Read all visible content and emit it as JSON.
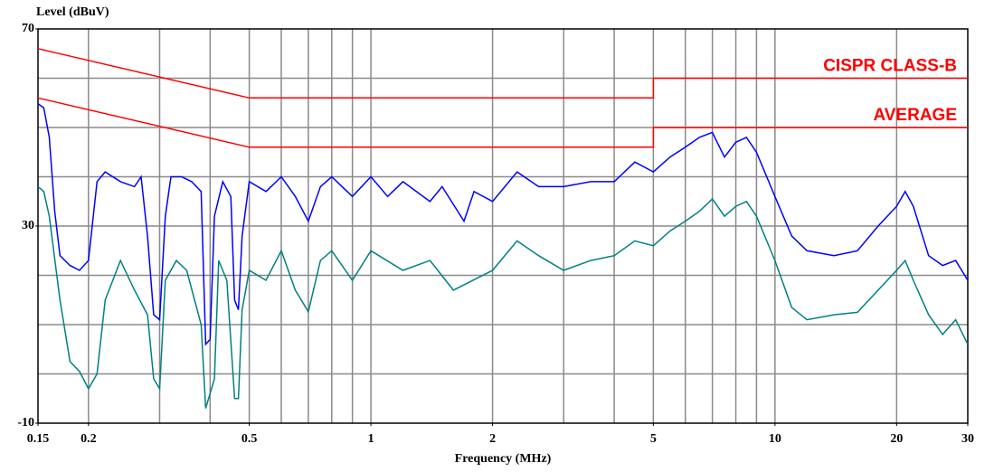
{
  "chart_data": {
    "type": "line",
    "y_label": "Level (dBuV)",
    "x_label": "Frequency (MHz)",
    "xscale": "log",
    "xlim": [
      0.15,
      30
    ],
    "ylim": [
      -10,
      70
    ],
    "xticks": [
      0.15,
      0.2,
      0.5,
      1,
      2,
      5,
      10,
      20,
      30
    ],
    "yticks": [
      -10,
      30,
      70
    ],
    "xgrid": [
      0.2,
      0.3,
      0.4,
      0.5,
      0.6,
      0.7,
      0.8,
      0.9,
      1,
      2,
      3,
      4,
      5,
      6,
      7,
      8,
      9,
      10,
      20
    ],
    "ygrid": [
      0,
      10,
      20,
      30,
      40,
      50,
      60
    ],
    "grid": true,
    "series": [
      {
        "name": "CISPR CLASS-B",
        "color": "#ff0000",
        "x": [
          0.15,
          0.5,
          5,
          5,
          30
        ],
        "values": [
          66,
          56,
          56,
          60,
          60
        ]
      },
      {
        "name": "AVERAGE",
        "color": "#ff0000",
        "x": [
          0.15,
          0.5,
          5,
          5,
          30
        ],
        "values": [
          56,
          46,
          46,
          50,
          50
        ]
      },
      {
        "color": "#0000ff",
        "x": [
          0.15,
          0.155,
          0.16,
          0.165,
          0.17,
          0.18,
          0.19,
          0.2,
          0.21,
          0.22,
          0.24,
          0.26,
          0.27,
          0.28,
          0.29,
          0.3,
          0.31,
          0.32,
          0.34,
          0.36,
          0.38,
          0.39,
          0.4,
          0.41,
          0.43,
          0.45,
          0.46,
          0.47,
          0.48,
          0.5,
          0.55,
          0.6,
          0.65,
          0.7,
          0.75,
          0.8,
          0.9,
          1.0,
          1.1,
          1.2,
          1.4,
          1.5,
          1.7,
          1.8,
          2.0,
          2.3,
          2.6,
          3.0,
          3.5,
          4.0,
          4.5,
          5.0,
          5.5,
          6.0,
          6.5,
          7.0,
          7.5,
          8.0,
          8.5,
          9.0,
          10,
          11,
          12,
          14,
          16,
          18,
          20,
          21,
          22,
          24,
          26,
          28,
          30
        ],
        "values": [
          54.8,
          54,
          48,
          33,
          24,
          22,
          21,
          23,
          39,
          41,
          39,
          38,
          40,
          28,
          12,
          11,
          32,
          40,
          40,
          39,
          37,
          6,
          7,
          32,
          39,
          36,
          15,
          13,
          28,
          39,
          37,
          40,
          36,
          31,
          38,
          40,
          36,
          40,
          36,
          39,
          35,
          38,
          31,
          37,
          35,
          41,
          38,
          38,
          39,
          39,
          43,
          41,
          44,
          46,
          48,
          49,
          44,
          47,
          48,
          45,
          36,
          28,
          25,
          24,
          25,
          30,
          34,
          37,
          34,
          24,
          22,
          23,
          19
        ]
      },
      {
        "color": "#008080",
        "x": [
          0.15,
          0.155,
          0.16,
          0.17,
          0.18,
          0.19,
          0.2,
          0.21,
          0.22,
          0.24,
          0.26,
          0.28,
          0.29,
          0.3,
          0.31,
          0.33,
          0.35,
          0.38,
          0.39,
          0.41,
          0.42,
          0.44,
          0.46,
          0.47,
          0.48,
          0.5,
          0.55,
          0.6,
          0.65,
          0.7,
          0.75,
          0.8,
          0.9,
          1.0,
          1.2,
          1.4,
          1.6,
          2.0,
          2.3,
          2.6,
          3.0,
          3.5,
          4.0,
          4.5,
          5.0,
          5.5,
          6.0,
          6.5,
          7.0,
          7.5,
          8.0,
          8.5,
          9.0,
          10,
          11,
          12,
          14,
          16,
          18,
          20,
          21,
          22,
          24,
          26,
          28,
          30
        ],
        "values": [
          38,
          37,
          32,
          15,
          2.5,
          0.5,
          -3,
          0,
          15,
          23,
          17,
          12,
          -1,
          -3,
          19,
          23,
          21,
          10,
          -7,
          -1,
          23,
          19,
          -5,
          -5,
          13,
          21,
          19,
          25,
          17,
          12.6,
          23,
          25,
          19,
          25,
          21,
          23,
          17,
          21,
          27,
          24,
          21,
          23,
          24,
          27,
          26,
          29,
          31,
          33,
          35.5,
          32,
          34,
          35,
          32,
          23,
          13.5,
          11,
          12,
          12.5,
          17,
          21,
          23,
          19,
          12,
          8,
          11,
          6
        ]
      }
    ]
  }
}
